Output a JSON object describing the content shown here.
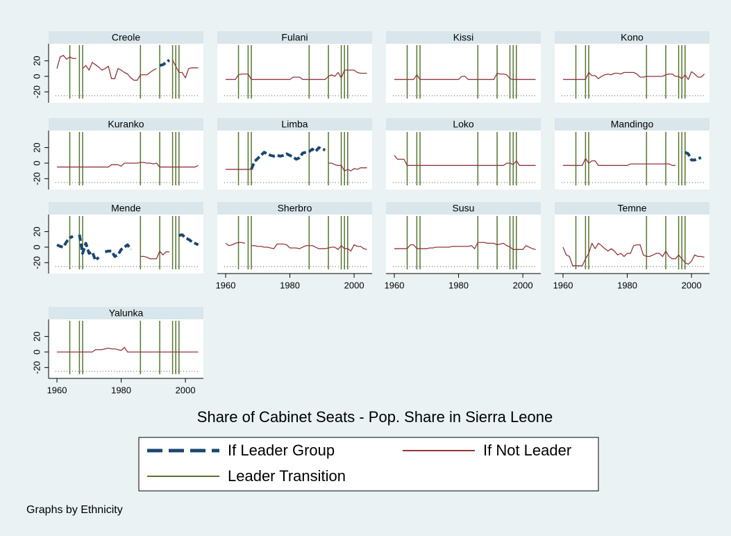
{
  "chart_data": {
    "type": "line",
    "title": "Share of Cabinet Seats - Pop. Share in Sierra Leone",
    "note": "Graphs by Ethnicity",
    "legend": {
      "leader": {
        "name": "If Leader Group",
        "color": "#1a476f"
      },
      "not_leader": {
        "name": "If Not Leader",
        "color": "#90353b"
      },
      "transition": {
        "name": "Leader Transition",
        "color": "#55752f"
      }
    },
    "x": [
      1960,
      1961,
      1962,
      1963,
      1964,
      1965,
      1966,
      1967,
      1968,
      1969,
      1970,
      1971,
      1972,
      1973,
      1974,
      1975,
      1976,
      1977,
      1978,
      1979,
      1980,
      1981,
      1982,
      1983,
      1984,
      1985,
      1986,
      1987,
      1988,
      1989,
      1990,
      1991,
      1992,
      1993,
      1994,
      1995,
      1996,
      1997,
      1998,
      1999,
      2000,
      2001,
      2002,
      2003,
      2004
    ],
    "xlim": [
      1957.4,
      2005.6
    ],
    "xticks": [
      1960,
      1980,
      2000
    ],
    "ylim": [
      -34,
      42
    ],
    "yticks": [
      -20,
      0,
      20
    ],
    "refline": -25,
    "transitions": [
      1964,
      1967,
      1968,
      1986,
      1992,
      1996,
      1997,
      1998
    ],
    "panels": [
      {
        "title": "Creole",
        "not_leader": [
          10,
          25,
          27,
          22,
          25,
          23,
          23,
          null,
          10,
          14,
          8,
          18,
          15,
          12,
          8,
          10,
          13,
          -3,
          -3,
          10,
          8,
          5,
          3,
          -2,
          -5,
          -5,
          2,
          2,
          2,
          5,
          8,
          10,
          null,
          null,
          null,
          null,
          21,
          13,
          5,
          5,
          -2,
          10,
          11,
          11,
          11
        ],
        "leader": [
          null,
          null,
          null,
          null,
          null,
          null,
          null,
          null,
          null,
          null,
          null,
          null,
          null,
          null,
          null,
          null,
          null,
          null,
          null,
          null,
          null,
          null,
          null,
          null,
          null,
          null,
          null,
          null,
          null,
          null,
          null,
          null,
          14,
          15,
          18,
          21,
          null,
          null,
          null,
          null,
          null,
          null,
          null,
          null,
          null
        ]
      },
      {
        "title": "Fulani",
        "not_leader": [
          -4,
          -4,
          -4,
          -4,
          2,
          3,
          3,
          3,
          -4,
          -4,
          -4,
          -4,
          -4,
          -4,
          -4,
          -4,
          -4,
          -4,
          -4,
          -4,
          -4,
          -1,
          -1,
          -1,
          -4,
          -4,
          -4,
          -4,
          -4,
          -4,
          -4,
          -4,
          0,
          2,
          0,
          5,
          -2,
          8,
          8,
          8,
          8,
          5,
          4,
          4,
          4
        ]
      },
      {
        "title": "Kissi",
        "not_leader": [
          -4,
          -4,
          -4,
          -4,
          -4,
          -4,
          -4,
          2,
          -4,
          -4,
          -4,
          -4,
          -4,
          -4,
          -4,
          -4,
          -4,
          -4,
          -4,
          -4,
          -4,
          0,
          0,
          -4,
          -4,
          -4,
          -4,
          -4,
          -4,
          -4,
          -4,
          -4,
          4,
          3,
          3,
          2,
          -3,
          -4,
          -4,
          -4,
          -4,
          -4,
          -4,
          -4,
          -4
        ]
      },
      {
        "title": "Kono",
        "not_leader": [
          -4,
          -4,
          -4,
          -4,
          -4,
          -4,
          -4,
          -4,
          5,
          1,
          1,
          -3,
          0,
          2,
          3,
          2,
          4,
          4,
          3,
          5,
          5,
          5,
          5,
          3,
          -1,
          -1,
          0,
          0,
          0,
          0,
          0,
          0,
          2,
          3,
          3,
          0,
          0,
          -3,
          2,
          -4,
          6,
          3,
          -1,
          -1,
          3
        ]
      },
      {
        "title": "Kuranko",
        "not_leader": [
          -5,
          -5,
          -5,
          -5,
          -5,
          -5,
          -5,
          -5,
          -5,
          -5,
          -5,
          -5,
          -5,
          -5,
          -5,
          -5,
          -5,
          -2,
          -2,
          -2,
          -4,
          0,
          0,
          0,
          0,
          0,
          1,
          1,
          0,
          0,
          -1,
          0,
          -5,
          -5,
          -5,
          -5,
          -5,
          -5,
          -5,
          -5,
          -5,
          -5,
          -5,
          -5,
          -3
        ]
      },
      {
        "title": "Limba",
        "not_leader": [
          -8,
          -8,
          -8,
          -8,
          -8,
          -8,
          -8,
          -8,
          -8,
          null,
          null,
          null,
          null,
          null,
          null,
          null,
          null,
          null,
          null,
          null,
          null,
          null,
          null,
          null,
          null,
          null,
          null,
          null,
          null,
          null,
          null,
          null,
          0,
          0,
          -2,
          -3,
          -3,
          -10,
          -8,
          -10,
          -7,
          -8,
          -6,
          -6,
          -6
        ],
        "leader": [
          null,
          null,
          null,
          null,
          null,
          null,
          null,
          null,
          -8,
          2,
          6,
          10,
          14,
          12,
          10,
          9,
          10,
          9,
          10,
          12,
          10,
          8,
          5,
          7,
          13,
          14,
          15,
          18,
          15,
          20,
          18,
          17,
          null,
          null,
          null,
          null,
          null,
          null,
          null,
          null,
          null,
          null,
          null,
          null,
          null
        ]
      },
      {
        "title": "Loko",
        "not_leader": [
          10,
          5,
          5,
          5,
          -3,
          -3,
          -3,
          -3,
          -3,
          -3,
          -3,
          -3,
          -3,
          -3,
          -3,
          -3,
          -3,
          -3,
          -3,
          -3,
          -3,
          -3,
          -3,
          -3,
          -3,
          -3,
          -3,
          -3,
          -3,
          -3,
          -3,
          -3,
          -3,
          -3,
          -3,
          0,
          0,
          -2,
          3,
          -3,
          -3,
          -3,
          -3,
          -3,
          -3
        ]
      },
      {
        "title": "Mandingo",
        "not_leader": [
          -3,
          -3,
          -3,
          -3,
          -3,
          -3,
          -3,
          6,
          0,
          3,
          3,
          -3,
          -3,
          -3,
          -3,
          -3,
          -3,
          -3,
          -3,
          -3,
          -3,
          -1,
          -1,
          -1,
          -1,
          -1,
          -1,
          -1,
          -1,
          -1,
          -1,
          -1,
          -1,
          -1,
          -3,
          -3,
          null,
          null,
          null,
          null,
          null,
          null,
          null,
          null,
          null
        ],
        "leader": [
          null,
          null,
          null,
          null,
          null,
          null,
          null,
          null,
          null,
          null,
          null,
          null,
          null,
          null,
          null,
          null,
          null,
          null,
          null,
          null,
          null,
          null,
          null,
          null,
          null,
          null,
          null,
          null,
          null,
          null,
          null,
          null,
          null,
          null,
          null,
          null,
          null,
          null,
          14,
          12,
          4,
          4,
          6,
          7,
          null
        ]
      },
      {
        "title": "Mende",
        "not_leader": [
          null,
          null,
          null,
          null,
          null,
          null,
          null,
          null,
          null,
          null,
          null,
          null,
          null,
          null,
          null,
          null,
          null,
          null,
          null,
          null,
          null,
          null,
          null,
          null,
          null,
          null,
          -12,
          -12,
          -13,
          -15,
          -15,
          -15,
          -5,
          -10,
          -6,
          -6,
          null,
          null,
          null,
          null,
          null,
          null,
          null,
          null,
          null
        ],
        "leader": [
          3,
          1,
          0,
          7,
          12,
          14,
          null,
          16,
          -8,
          5,
          -8,
          -6,
          -17,
          -13,
          null,
          -6,
          -5,
          -5,
          -12,
          -10,
          -3,
          0,
          3,
          -3,
          null,
          null,
          null,
          null,
          null,
          null,
          null,
          null,
          null,
          null,
          null,
          null,
          null,
          null,
          15,
          16,
          12,
          10,
          7,
          5,
          3
        ]
      },
      {
        "title": "Sherbro",
        "not_leader": [
          5,
          2,
          3,
          5,
          6,
          6,
          5,
          null,
          2,
          2,
          1,
          1,
          0,
          0,
          -1,
          -2,
          4,
          4,
          4,
          3,
          -1,
          -1,
          -1,
          -2,
          0,
          2,
          2,
          2,
          0,
          -2,
          -2,
          -2,
          -1,
          0,
          0,
          -3,
          2,
          -2,
          -2,
          -5,
          3,
          1,
          1,
          -2,
          -3
        ]
      },
      {
        "title": "Susu",
        "not_leader": [
          -2,
          -2,
          -2,
          -2,
          -2,
          3,
          3,
          -2,
          -2,
          -2,
          -2,
          -1,
          -1,
          0,
          0,
          0,
          0,
          0,
          1,
          1,
          1,
          1,
          1,
          1,
          2,
          -2,
          6,
          6,
          6,
          5,
          5,
          5,
          3,
          4,
          5,
          2,
          0,
          -3,
          -3,
          -3,
          -3,
          2,
          0,
          -2,
          -3
        ]
      },
      {
        "title": "Temne",
        "not_leader": [
          0,
          -10,
          -12,
          -24,
          -24,
          -24,
          -24,
          -15,
          -8,
          5,
          -2,
          5,
          2,
          -2,
          -5,
          -2,
          -5,
          -10,
          -8,
          -12,
          -8,
          -8,
          2,
          3,
          3,
          -10,
          -12,
          -12,
          -10,
          -8,
          -8,
          -12,
          -5,
          -12,
          -15,
          -15,
          -10,
          -15,
          -20,
          -22,
          -18,
          -10,
          -12,
          -12,
          -13
        ]
      },
      {
        "title": "Yalunka",
        "not_leader": [
          0,
          0,
          0,
          0,
          0,
          0,
          0,
          0,
          0,
          0,
          0,
          0,
          3,
          3,
          3,
          4,
          5,
          4,
          4,
          3,
          2,
          6,
          0,
          0,
          0,
          0,
          0,
          0,
          0,
          0,
          0,
          0,
          0,
          0,
          0,
          0,
          0,
          0,
          0,
          0,
          0,
          0,
          0,
          0,
          0
        ]
      }
    ]
  }
}
